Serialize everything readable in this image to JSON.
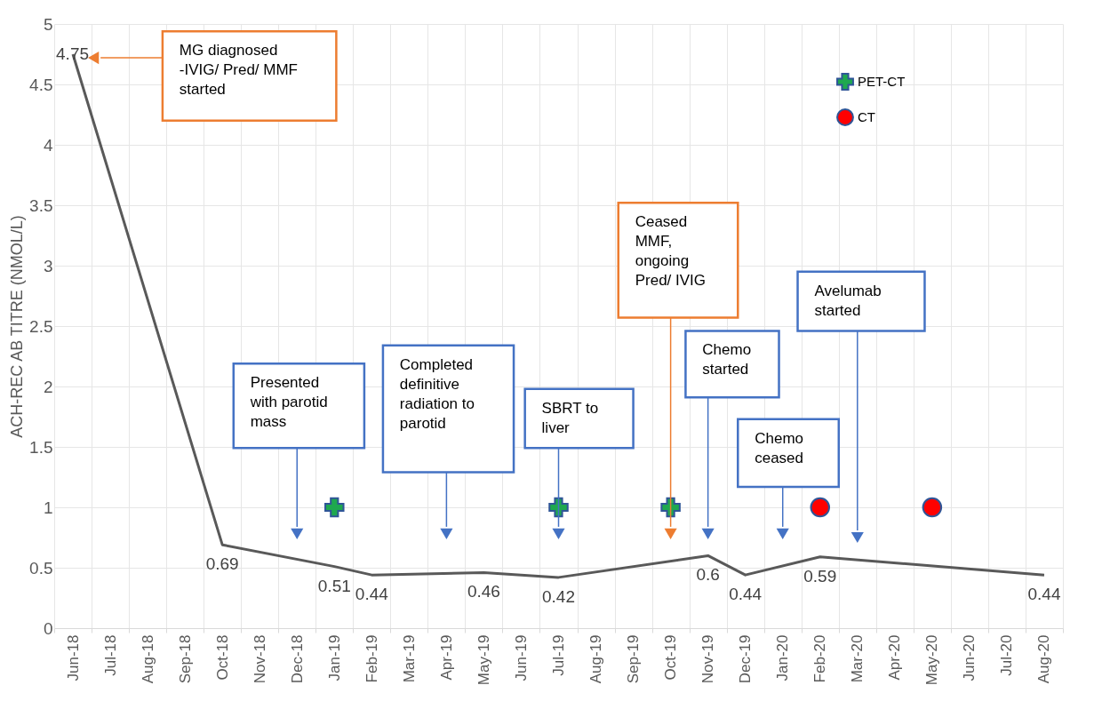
{
  "chart_data": {
    "type": "line",
    "ylabel": "ACH-REC AB TITRE (NMOL/L)",
    "categories": [
      "Jun-18",
      "Jul-18",
      "Aug-18",
      "Sep-18",
      "Oct-18",
      "Nov-18",
      "Dec-18",
      "Jan-19",
      "Feb-19",
      "Mar-19",
      "Apr-19",
      "May-19",
      "Jun-19",
      "Jul-19",
      "Aug-19",
      "Sep-19",
      "Oct-19",
      "Nov-19",
      "Dec-19",
      "Jan-20",
      "Feb-20",
      "Mar-20",
      "Apr-20",
      "May-20",
      "Jun-20",
      "Jul-20",
      "Aug-20"
    ],
    "series": [
      {
        "color": "#595959",
        "marker": "none",
        "x": [
          "Jun-18",
          "Oct-18",
          "Jan-19",
          "Feb-19",
          "May-19",
          "Jul-19",
          "Nov-19",
          "Dec-19",
          "Feb-20",
          "Aug-20"
        ],
        "values": [
          4.75,
          0.69,
          0.51,
          0.44,
          0.46,
          0.42,
          0.6,
          0.44,
          0.59,
          0.44
        ],
        "value_labels": [
          "4.75",
          "0.69",
          "0.51",
          "0.44",
          "0.46",
          "0.42",
          "0.6",
          "0.44",
          "0.59",
          "0.44"
        ]
      },
      {
        "type": "scatter",
        "name": "PET-CT",
        "color": "#1fa84f",
        "marker": "cross",
        "x": [
          "Jan-19",
          "Jul-19",
          "Oct-19"
        ],
        "values": [
          1,
          1,
          1
        ]
      },
      {
        "type": "scatter",
        "name": "CT",
        "color": "#ff0000",
        "marker": "circle",
        "x": [
          "Feb-20",
          "May-20"
        ],
        "values": [
          1,
          1
        ]
      }
    ],
    "ylim": [
      0,
      5
    ],
    "yticks": [
      0,
      0.5,
      1,
      1.5,
      2,
      2.5,
      3,
      3.5,
      4,
      4.5,
      5
    ],
    "grid": true,
    "legend": "top right",
    "line_style": "solid",
    "annotations": [
      "MG diagnosed\n-IVIG/ Pred/ MMF\nstarted",
      {
        "text": "Presented\nwith parotid\nmass",
        "x": "Dec-18",
        "y": 0.78
      },
      "Completed\ndefinitive\nradiation to\nparotid",
      {
        "text": "SBRT to\nliver",
        "x": "Jul-19",
        "y": 0.78
      },
      "Ceased\nMMF,\nongoing\nPred/ IVIG",
      {
        "text": "Chemo\nstarted",
        "x": "Nov-19",
        "y": 0.78
      },
      "Chemo\nceased",
      {
        "text": "Avelumab\nstarted",
        "x": "Mar-20",
        "y": 0.75
      }
    ]
  }
}
